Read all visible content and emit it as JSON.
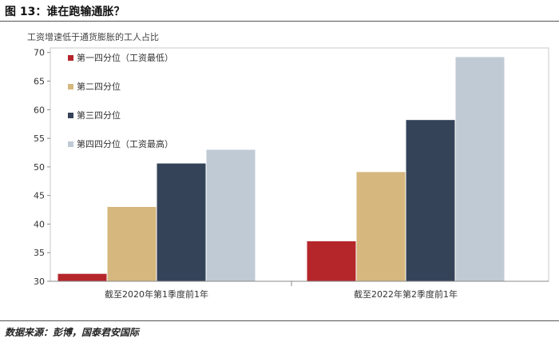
{
  "figure": {
    "title": "图 13：谁在跑输通胀？",
    "source": "数据来源：彭博，国泰君安国际"
  },
  "chart_data": {
    "type": "bar",
    "ylabel": "工资增速低于通货膨胀的工人占比",
    "xlabel": "",
    "ylim": [
      30,
      70
    ],
    "yticks": [
      30,
      35,
      40,
      45,
      50,
      55,
      60,
      65,
      70
    ],
    "grid": false,
    "legend_position": "top-left",
    "categories": [
      "截至2020年第1季度前1年",
      "截至2022年第2季度前1年"
    ],
    "series": [
      {
        "name": "第一四分位（工资最低）",
        "values": [
          31.3,
          37.0
        ],
        "color": "#b5262b"
      },
      {
        "name": "第二四分位",
        "values": [
          43.0,
          49.1
        ],
        "color": "#d6b77e"
      },
      {
        "name": "第三四分位",
        "values": [
          50.6,
          58.2
        ],
        "color": "#354359"
      },
      {
        "name": "第四四分位（工资最高）",
        "values": [
          53.0,
          69.2
        ],
        "color": "#c0cad5"
      }
    ]
  }
}
